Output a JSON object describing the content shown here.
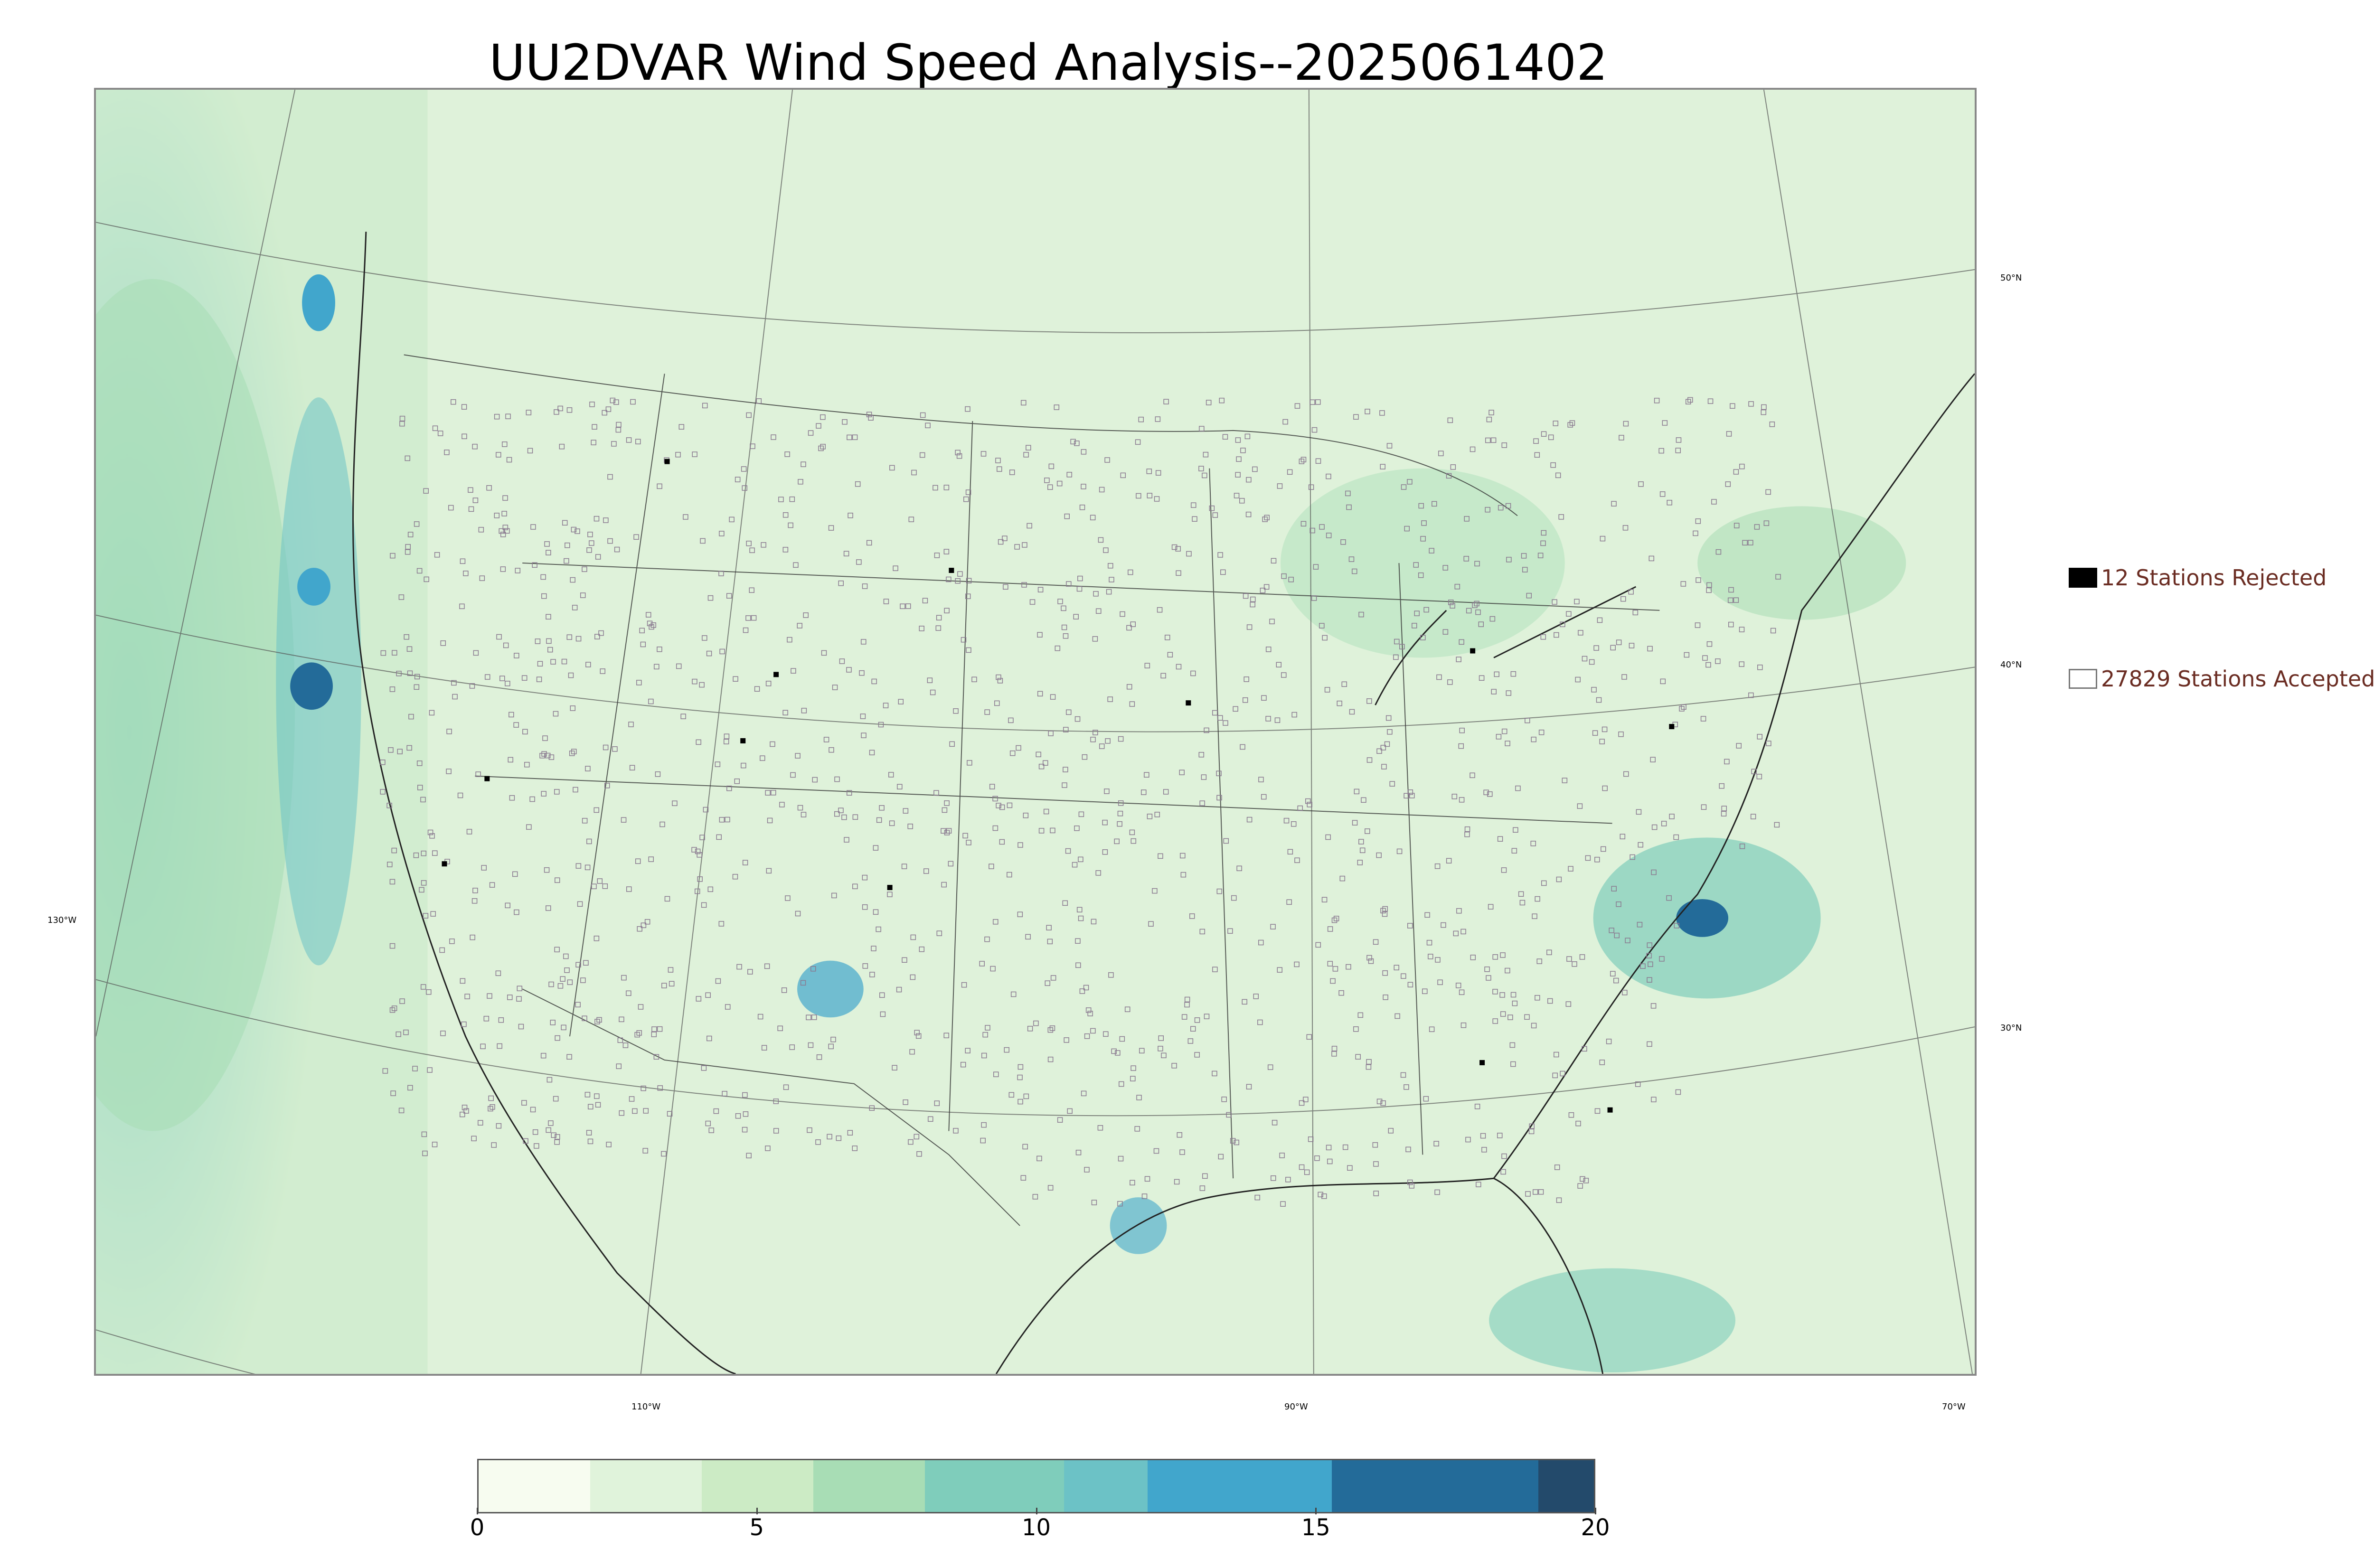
{
  "title": "UU2DVAR Wind Speed Analysis--2025061402",
  "map": {
    "projection": "lambert-conformal",
    "region": "CONUS",
    "background_color": "#e6f4e2",
    "station_marker_color": "#8a7a90",
    "lon_labels": [
      "130°W",
      "110°W",
      "90°W",
      "70°W"
    ],
    "lat_labels": [
      "50°N",
      "40°N",
      "30°N"
    ]
  },
  "legend": {
    "rejected": {
      "label": "12 Stations Rejected",
      "color": "#000000"
    },
    "accepted": {
      "label": "27829 Stations Accepted",
      "color": "#ffffff"
    }
  },
  "colorbar": {
    "ticks": [
      "0",
      "5",
      "10",
      "15",
      "20"
    ],
    "min": 0,
    "max": 20,
    "segments": [
      {
        "from": 0,
        "to": 2,
        "color": "#f7fcf0"
      },
      {
        "from": 2,
        "to": 4,
        "color": "#e0f3db"
      },
      {
        "from": 4,
        "to": 6,
        "color": "#ccebc5"
      },
      {
        "from": 6,
        "to": 8,
        "color": "#a8ddb5"
      },
      {
        "from": 8,
        "to": 10.5,
        "color": "#7fcdbb"
      },
      {
        "from": 10.5,
        "to": 12,
        "color": "#6cc2c6"
      },
      {
        "from": 12,
        "to": 15.3,
        "color": "#41a6cc"
      },
      {
        "from": 15.3,
        "to": 19,
        "color": "#236b99"
      },
      {
        "from": 19,
        "to": 20,
        "color": "#234a6b"
      }
    ]
  }
}
